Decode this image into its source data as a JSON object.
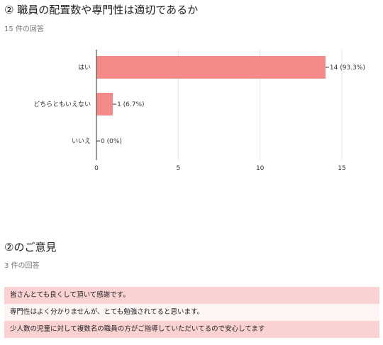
{
  "q1": {
    "title": "② 職員の配置数や専門性は適切であるか",
    "response_count": "15 件の回答"
  },
  "chart_data": {
    "type": "bar",
    "orientation": "horizontal",
    "categories": [
      "はい",
      "どちらともいえない",
      "いいえ"
    ],
    "values": [
      14,
      1,
      0
    ],
    "data_labels": [
      "14 (93.3%)",
      "1 (6.7%)",
      "0 (0%)"
    ],
    "xlim": [
      0,
      15
    ],
    "xticks": [
      0,
      5,
      10,
      15
    ],
    "grid": true,
    "bar_color": "#f48a88",
    "legend": "none"
  },
  "q2": {
    "title": "②のご意見",
    "response_count": "3 件の回答",
    "responses": [
      "皆さんとても良くして頂いて感謝です。",
      "専門性はよく分かりませんが、とても勉強されてると思います。",
      "少人数の児童に対して複数名の職員の方がご指導していただいてるので安心してます"
    ]
  }
}
